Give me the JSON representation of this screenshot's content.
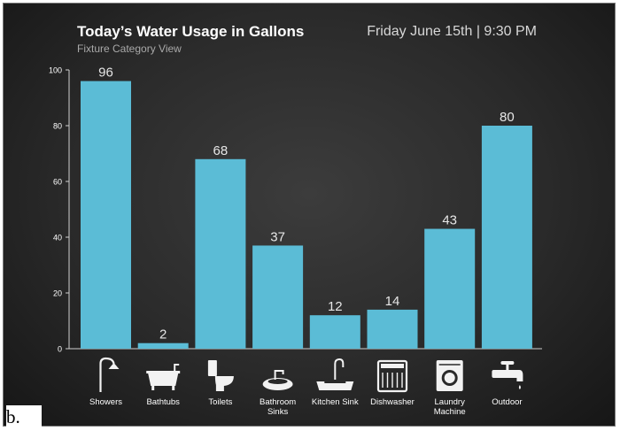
{
  "header": {
    "title": "Today’s Water Usage in Gallons",
    "subtitle": "Fixture Category View",
    "timestamp": "Friday June 15th | 9:30 PM"
  },
  "figure_label": "b.",
  "colors": {
    "bar": "#5bbcd6",
    "axis": "#d0d0d0",
    "text": "#ffffff",
    "icon": "#f2f2f2"
  },
  "chart_data": {
    "type": "bar",
    "title": "Today’s Water Usage in Gallons",
    "subtitle": "Fixture Category View",
    "categories": [
      "Showers",
      "Bathtubs",
      "Toilets",
      "Bathroom Sinks",
      "Kitchen Sink",
      "Dishwasher",
      "Laundry Machine",
      "Outdoor"
    ],
    "category_lines": [
      [
        "Showers"
      ],
      [
        "Bathtubs"
      ],
      [
        "Toilets"
      ],
      [
        "Bathroom",
        "Sinks"
      ],
      [
        "Kitchen Sink"
      ],
      [
        "Dishwasher"
      ],
      [
        "Laundry",
        "Machine"
      ],
      [
        "Outdoor"
      ]
    ],
    "icons": [
      "shower-icon",
      "bathtub-icon",
      "toilet-icon",
      "sink-icon",
      "kitchen-sink-icon",
      "dishwasher-icon",
      "washing-machine-icon",
      "outdoor-faucet-icon"
    ],
    "values": [
      96,
      2,
      68,
      37,
      12,
      14,
      43,
      80
    ],
    "yticks": [
      0,
      20,
      40,
      60,
      80,
      100
    ],
    "ylim": [
      0,
      100
    ],
    "xlabel": "",
    "ylabel": "",
    "grid": false
  }
}
